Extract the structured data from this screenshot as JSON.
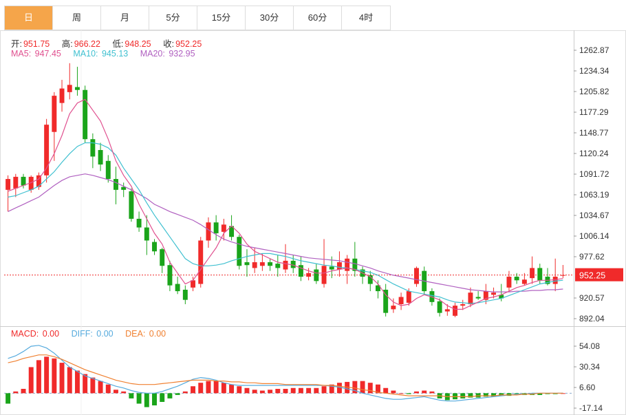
{
  "tabs": [
    {
      "label": "日",
      "active": true
    },
    {
      "label": "周",
      "active": false
    },
    {
      "label": "月",
      "active": false
    },
    {
      "label": "5分",
      "active": false
    },
    {
      "label": "15分",
      "active": false
    },
    {
      "label": "30分",
      "active": false
    },
    {
      "label": "60分",
      "active": false
    },
    {
      "label": "4时",
      "active": false
    }
  ],
  "ohlc": {
    "open_label": "开:",
    "open": "951.75",
    "high_label": "高:",
    "high": "966.22",
    "low_label": "低:",
    "low": "948.25",
    "close_label": "收:",
    "close": "952.25"
  },
  "ma_legend": {
    "ma5_label": "MA5: ",
    "ma5": "947.45",
    "ma10_label": "MA10: ",
    "ma10": "945.13",
    "ma20_label": "MA20: ",
    "ma20": "932.95"
  },
  "macd_legend": {
    "macd_label": "MACD: ",
    "macd": "0.00",
    "diff_label": "DIFF: ",
    "diff": "0.00",
    "dea_label": "DEA: ",
    "dea": "0.00"
  },
  "colors": {
    "up": "#f02a2a",
    "down": "#1aa41a",
    "ma5": "#e0508f",
    "ma10": "#3fc0d0",
    "ma20": "#b060c0",
    "diff": "#55aadd",
    "dea": "#f08030",
    "price_tag": "#f02a2a",
    "tab_active": "#f5a54a"
  },
  "chart_data": [
    {
      "type": "candlestick",
      "y_ticks": [
        "1262.87",
        "1234.34",
        "1205.82",
        "1177.29",
        "1148.77",
        "1120.24",
        "1091.72",
        "1063.19",
        "1034.67",
        "1006.14",
        "977.62",
        "920.57",
        "892.04"
      ],
      "ylim": [
        880,
        1280
      ],
      "last_price": "952.25",
      "candles": [
        [
          1070,
          1085,
          1040,
          1090
        ],
        [
          1072,
          1088,
          1060,
          1092
        ],
        [
          1088,
          1076,
          1072,
          1092
        ],
        [
          1070,
          1088,
          1066,
          1090
        ],
        [
          1074,
          1090,
          1070,
          1094
        ],
        [
          1090,
          1160,
          1080,
          1168
        ],
        [
          1150,
          1200,
          1110,
          1205
        ],
        [
          1190,
          1210,
          1178,
          1222
        ],
        [
          1205,
          1215,
          1195,
          1245
        ],
        [
          1212,
          1208,
          1200,
          1240
        ],
        [
          1208,
          1140,
          1135,
          1214
        ],
        [
          1140,
          1116,
          1100,
          1148
        ],
        [
          1125,
          1105,
          1096,
          1135
        ],
        [
          1110,
          1085,
          1080,
          1118
        ],
        [
          1085,
          1070,
          1050,
          1102
        ],
        [
          1074,
          1070,
          1060,
          1080
        ],
        [
          1068,
          1030,
          1026,
          1072
        ],
        [
          1030,
          1018,
          1012,
          1040
        ],
        [
          1018,
          1000,
          980,
          1035
        ],
        [
          998,
          985,
          980,
          1002
        ],
        [
          988,
          965,
          955,
          990
        ],
        [
          966,
          938,
          930,
          972
        ],
        [
          940,
          930,
          926,
          950
        ],
        [
          932,
          918,
          912,
          938
        ],
        [
          935,
          945,
          930,
          950
        ],
        [
          940,
          1000,
          935,
          1005
        ],
        [
          1000,
          1025,
          990,
          1032
        ],
        [
          1025,
          1010,
          1000,
          1035
        ],
        [
          1012,
          1022,
          1000,
          1030
        ],
        [
          1020,
          1005,
          1000,
          1035
        ],
        [
          1005,
          965,
          960,
          1008
        ],
        [
          970,
          966,
          950,
          988
        ],
        [
          962,
          970,
          955,
          990
        ],
        [
          965,
          970,
          958,
          982
        ],
        [
          970,
          965,
          958,
          975
        ],
        [
          968,
          962,
          950,
          980
        ],
        [
          960,
          972,
          955,
          995
        ],
        [
          972,
          962,
          955,
          980
        ],
        [
          966,
          950,
          944,
          978
        ],
        [
          950,
          955,
          945,
          962
        ],
        [
          960,
          944,
          940,
          968
        ],
        [
          940,
          965,
          935,
          1002
        ],
        [
          964,
          960,
          948,
          978
        ],
        [
          960,
          970,
          950,
          985
        ],
        [
          958,
          975,
          940,
          980
        ],
        [
          975,
          958,
          950,
          998
        ],
        [
          960,
          950,
          940,
          964
        ],
        [
          952,
          940,
          930,
          958
        ],
        [
          938,
          930,
          920,
          945
        ],
        [
          932,
          900,
          895,
          940
        ],
        [
          905,
          910,
          900,
          920
        ],
        [
          912,
          922,
          904,
          928
        ],
        [
          914,
          930,
          910,
          934
        ],
        [
          940,
          962,
          936,
          964
        ],
        [
          958,
          930,
          925,
          964
        ],
        [
          930,
          915,
          910,
          934
        ],
        [
          916,
          900,
          895,
          920
        ],
        [
          902,
          905,
          896,
          912
        ],
        [
          896,
          910,
          894,
          914
        ],
        [
          910,
          912,
          904,
          918
        ],
        [
          912,
          928,
          908,
          935
        ],
        [
          922,
          920,
          918,
          930
        ],
        [
          918,
          930,
          912,
          940
        ],
        [
          925,
          928,
          920,
          935
        ],
        [
          925,
          920,
          916,
          940
        ],
        [
          935,
          950,
          930,
          958
        ],
        [
          950,
          945,
          940,
          955
        ],
        [
          940,
          946,
          938,
          955
        ],
        [
          948,
          962,
          940,
          978
        ],
        [
          962,
          945,
          940,
          968
        ],
        [
          950,
          940,
          938,
          962
        ],
        [
          940,
          950,
          930,
          975
        ],
        [
          951.75,
          952.25,
          948.25,
          966.22
        ]
      ],
      "ma5": [
        1068,
        1072,
        1076,
        1080,
        1085,
        1100,
        1120,
        1145,
        1175,
        1190,
        1195,
        1180,
        1165,
        1140,
        1110,
        1090,
        1075,
        1050,
        1030,
        1010,
        995,
        970,
        955,
        940,
        945,
        960,
        975,
        990,
        1010,
        1020,
        1010,
        995,
        985,
        980,
        975,
        970,
        968,
        966,
        962,
        958,
        955,
        955,
        958,
        960,
        962,
        960,
        955,
        950,
        940,
        925,
        915,
        910,
        912,
        920,
        925,
        922,
        918,
        910,
        905,
        905,
        910,
        915,
        920,
        922,
        925,
        930,
        935,
        938,
        942,
        945,
        945,
        946,
        947.45
      ],
      "ma10": [
        1060,
        1062,
        1066,
        1070,
        1075,
        1085,
        1095,
        1108,
        1120,
        1130,
        1135,
        1135,
        1133,
        1128,
        1118,
        1100,
        1085,
        1070,
        1052,
        1035,
        1020,
        1005,
        990,
        975,
        968,
        965,
        965,
        966,
        968,
        972,
        975,
        978,
        980,
        982,
        982,
        980,
        978,
        975,
        972,
        970,
        968,
        966,
        965,
        963,
        962,
        960,
        958,
        956,
        952,
        946,
        940,
        935,
        930,
        928,
        926,
        924,
        922,
        918,
        915,
        914,
        913,
        914,
        916,
        918,
        920,
        924,
        928,
        932,
        936,
        940,
        942,
        944,
        945.13
      ],
      "ma20": [
        1040,
        1045,
        1050,
        1055,
        1060,
        1068,
        1076,
        1083,
        1088,
        1090,
        1092,
        1090,
        1087,
        1084,
        1080,
        1075,
        1070,
        1064,
        1058,
        1050,
        1045,
        1040,
        1036,
        1032,
        1028,
        1022,
        1015,
        1008,
        1002,
        998,
        995,
        992,
        990,
        988,
        986,
        984,
        982,
        980,
        978,
        976,
        975,
        974,
        973,
        972,
        970,
        968,
        965,
        962,
        958,
        955,
        952,
        950,
        948,
        946,
        944,
        942,
        940,
        938,
        936,
        934,
        932,
        931,
        930,
        929,
        929,
        929,
        930,
        930,
        931,
        931,
        932,
        932,
        932.95
      ]
    },
    {
      "type": "macd",
      "y_ticks": [
        "54.08",
        "30.34",
        "6.60",
        "-17.14"
      ],
      "ylim": [
        -30,
        66
      ],
      "histogram": [
        -12,
        2,
        5,
        30,
        38,
        42,
        40,
        35,
        30,
        26,
        22,
        18,
        14,
        10,
        4,
        2,
        -6,
        -12,
        -16,
        -14,
        -10,
        -6,
        -2,
        2,
        8,
        12,
        14,
        14,
        12,
        10,
        8,
        6,
        4,
        3,
        4,
        5,
        5,
        6,
        6,
        6,
        6,
        8,
        10,
        12,
        13,
        14,
        14,
        12,
        10,
        6,
        3,
        0,
        -1,
        2,
        3,
        2,
        -6,
        -8,
        -7,
        -6,
        -5,
        -5,
        -4,
        -4,
        -3,
        -3,
        -2,
        -2,
        -2,
        -2,
        -1,
        -1,
        0
      ],
      "diff": [
        40,
        43,
        48,
        54,
        55,
        52,
        46,
        38,
        30,
        25,
        20,
        17,
        14,
        11,
        8,
        6,
        3,
        1,
        0,
        0,
        2,
        5,
        8,
        12,
        16,
        18,
        17,
        15,
        12,
        10,
        9,
        9,
        9,
        9,
        9,
        9,
        9,
        9,
        9,
        9,
        9,
        9,
        8,
        7,
        5,
        3,
        0,
        -2,
        -4,
        -6,
        -7,
        -7,
        -6,
        -5,
        -4,
        -6,
        -8,
        -9,
        -9,
        -8,
        -7,
        -6,
        -5,
        -4,
        -3,
        -2,
        -1,
        -1,
        0,
        0,
        0,
        0,
        0
      ],
      "dea": [
        35,
        37,
        40,
        42,
        44,
        44,
        42,
        39,
        35,
        31,
        27,
        24,
        21,
        18,
        15,
        13,
        11,
        10,
        10,
        10,
        11,
        12,
        13,
        14,
        15,
        15,
        15,
        14,
        14,
        13,
        13,
        12,
        12,
        11,
        11,
        11,
        10,
        10,
        10,
        10,
        10,
        9,
        9,
        8,
        7,
        6,
        4,
        3,
        1,
        0,
        -1,
        -2,
        -3,
        -3,
        -3,
        -3,
        -3,
        -4,
        -4,
        -4,
        -4,
        -3,
        -3,
        -3,
        -2,
        -2,
        -2,
        -1,
        -1,
        0,
        0,
        0,
        0
      ]
    }
  ]
}
